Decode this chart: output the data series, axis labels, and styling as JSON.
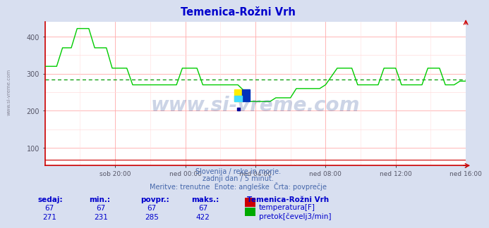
{
  "title": "Temenica-Rožni Vrh",
  "title_color": "#0000cc",
  "bg_color": "#d8dff0",
  "plot_bg_color": "#ffffff",
  "grid_color_major": "#ffaaaa",
  "grid_color_minor": "#ffdddd",
  "x_tick_labels": [
    "sob 20:00",
    "ned 00:00",
    "ned 04:00",
    "ned 08:00",
    "ned 12:00",
    "ned 16:00"
  ],
  "y_ticks": [
    100,
    200,
    300,
    400
  ],
  "ylim": [
    52,
    440
  ],
  "flow_povpr": 285,
  "avg_line_color": "#009900",
  "flow_line_color": "#00cc00",
  "temp_line_color": "#cc0000",
  "axis_line_color": "#cc0000",
  "watermark": "www.si-vreme.com",
  "watermark_color": "#1a3f8f",
  "watermark_alpha": 0.22,
  "subtitle1": "Slovenija / reke in morje.",
  "subtitle2": "zadnji dan / 5 minut.",
  "subtitle3": "Meritve: trenutne  Enote: angleške  Črta: povprečje",
  "subtitle_color": "#4466aa",
  "table_header": "Temenica-Rožni Vrh",
  "table_color": "#0000cc",
  "col_labels": [
    "sedaj:",
    "min.:",
    "povpr.:",
    "maks.:"
  ],
  "row1_vals": [
    "67",
    "67",
    "67",
    "67"
  ],
  "row2_vals": [
    "271",
    "231",
    "285",
    "422"
  ],
  "temp_box_color": "#cc0000",
  "flow_box_color": "#00aa00",
  "temp_label": "temperatura[F]",
  "flow_label": "pretok[čevelj3/min]",
  "left_label": "www.si-vreme.com"
}
